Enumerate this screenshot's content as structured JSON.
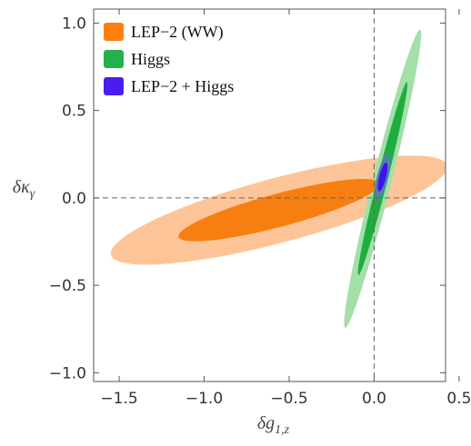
{
  "chart_data": {
    "type": "contour",
    "xlabel": {
      "main": "δg",
      "sub": "1,z"
    },
    "ylabel": {
      "main": "δκ",
      "sub": "γ"
    },
    "xlim": [
      -1.65,
      0.42
    ],
    "ylim": [
      -1.05,
      1.08
    ],
    "xticks": [
      -1.5,
      -1.0,
      -0.5,
      0.0,
      0.5
    ],
    "xtick_labels": [
      "-1.5",
      "-1.0",
      "-0.5",
      "0.0",
      "0.5"
    ],
    "yticks": [
      -1.0,
      -0.5,
      0.0,
      0.5,
      1.0
    ],
    "ytick_labels": [
      "-1.0",
      "-0.5",
      "0.0",
      "0.5",
      "1.0"
    ],
    "reference_lines": {
      "x": 0.0,
      "y": 0.0,
      "style": "dashed"
    },
    "legend_position": "top-left",
    "grid": false,
    "series": [
      {
        "name": "LEP-2 (WW)",
        "color": "#ff7f0e",
        "regions": [
          {
            "level": "outer",
            "center": [
              -0.56,
              -0.07
            ],
            "semi_major": 1.02,
            "semi_minor": 0.185,
            "angle_deg": 14.5,
            "color": "#fdc597"
          },
          {
            "level": "inner",
            "center": [
              -0.56,
              -0.07
            ],
            "semi_major": 0.61,
            "semi_minor": 0.095,
            "angle_deg": 14.5,
            "color": "#f77f12"
          }
        ]
      },
      {
        "name": "Higgs",
        "color": "#22b14c",
        "regions": [
          {
            "level": "outer",
            "center": [
              0.05,
              0.11
            ],
            "semi_major": 0.88,
            "semi_minor": 0.055,
            "angle_deg": 75.5,
            "color": "#a3dfa9"
          },
          {
            "level": "inner",
            "center": [
              0.05,
              0.11
            ],
            "semi_major": 0.57,
            "semi_minor": 0.03,
            "angle_deg": 75.5,
            "color": "#1fad3e"
          }
        ]
      },
      {
        "name": "LEP-2 + Higgs",
        "color": "#4a1cf0",
        "regions": [
          {
            "level": "outer",
            "center": [
              0.05,
              0.12
            ],
            "semi_major": 0.135,
            "semi_minor": 0.033,
            "angle_deg": 75.5,
            "color": "#4d82a8"
          },
          {
            "level": "inner",
            "center": [
              0.05,
              0.12
            ],
            "semi_major": 0.085,
            "semi_minor": 0.02,
            "angle_deg": 75.5,
            "color": "#3d14ee"
          }
        ]
      }
    ]
  }
}
